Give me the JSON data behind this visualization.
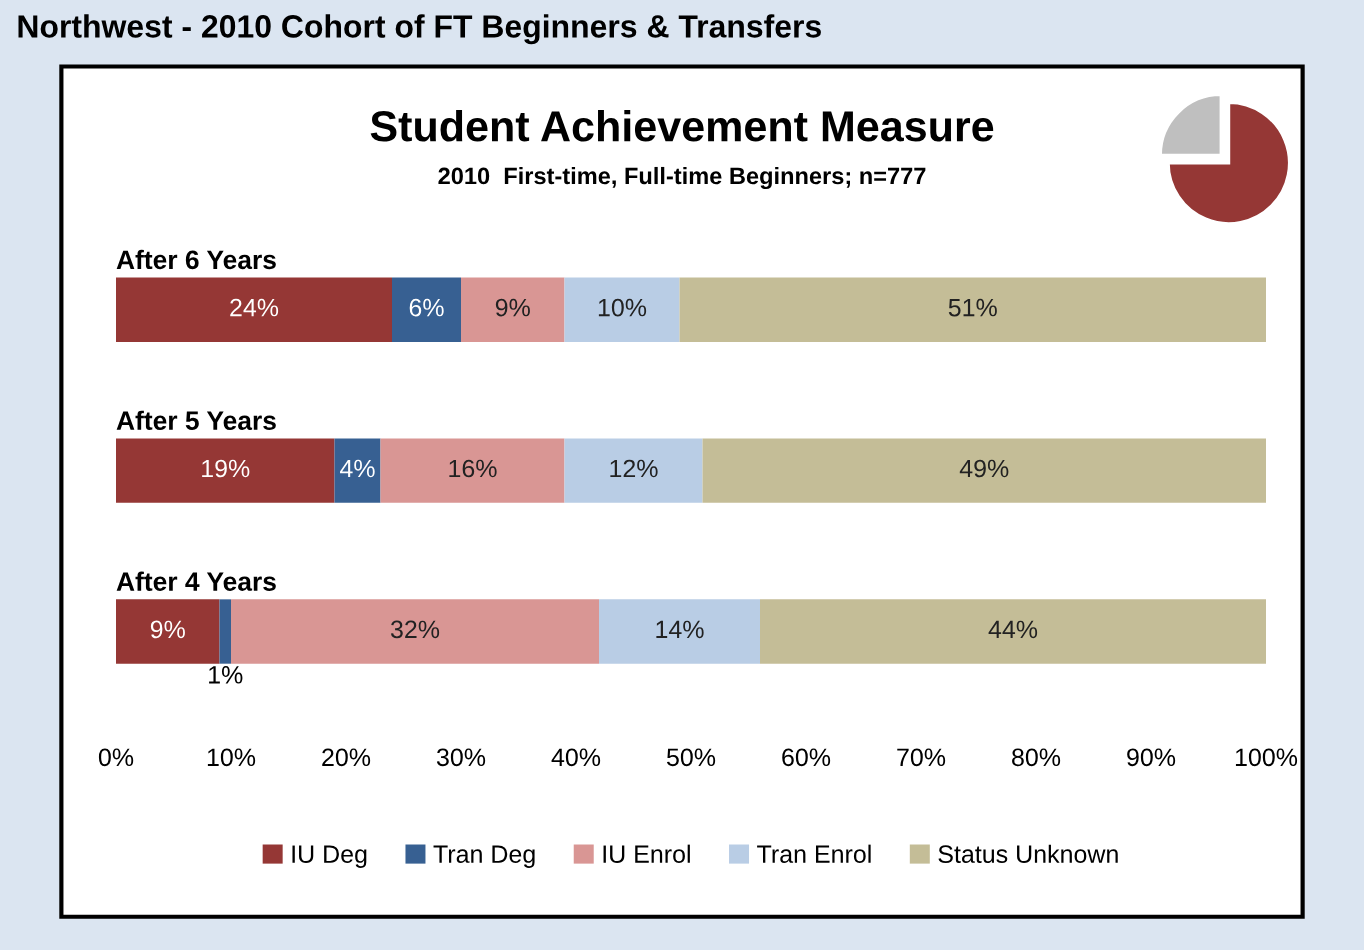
{
  "chart_data": {
    "type": "bar",
    "orientation": "horizontal",
    "stacked": true,
    "title": "Student Achievement Measure",
    "subtitle": "2010  First-time, Full-time Beginners; n=777",
    "annotations": [
      "Northwest - 2010 Cohort of FT Beginners & Transfers"
    ],
    "categories": [
      "After 6 Years",
      "After 5 Years",
      "After 4 Years"
    ],
    "series": [
      {
        "name": "IU Deg",
        "color": "#953735",
        "values": [
          24,
          19,
          9
        ],
        "value_labels": [
          "24%",
          "19%",
          "9%"
        ]
      },
      {
        "name": "Tran Deg",
        "color": "#376092",
        "values": [
          6,
          4,
          1
        ],
        "value_labels": [
          "6%",
          "4%",
          "1%"
        ]
      },
      {
        "name": "IU Enrol",
        "color": "#d99694",
        "values": [
          9,
          16,
          32
        ],
        "value_labels": [
          "9%",
          "16%",
          "32%"
        ]
      },
      {
        "name": "Tran Enrol",
        "color": "#b9cde5",
        "values": [
          10,
          12,
          14
        ],
        "value_labels": [
          "10%",
          "12%",
          "14%"
        ]
      },
      {
        "name": "Status Unknown",
        "color": "#c4bd97",
        "values": [
          51,
          49,
          44
        ],
        "value_labels": [
          "51%",
          "49%",
          "44%"
        ]
      }
    ],
    "xlim": [
      0,
      100
    ],
    "xticks": [
      {
        "value": 0,
        "label": "0%"
      },
      {
        "value": 10,
        "label": "10%"
      },
      {
        "value": 20,
        "label": "20%"
      },
      {
        "value": 30,
        "label": "30%"
      },
      {
        "value": 40,
        "label": "40%"
      },
      {
        "value": 50,
        "label": "50%"
      },
      {
        "value": 60,
        "label": "60%"
      },
      {
        "value": 70,
        "label": "70%"
      },
      {
        "value": 80,
        "label": "80%"
      },
      {
        "value": 90,
        "label": "90%"
      },
      {
        "value": 100,
        "label": "100%"
      }
    ],
    "legend": "bottom",
    "grid": false
  }
}
